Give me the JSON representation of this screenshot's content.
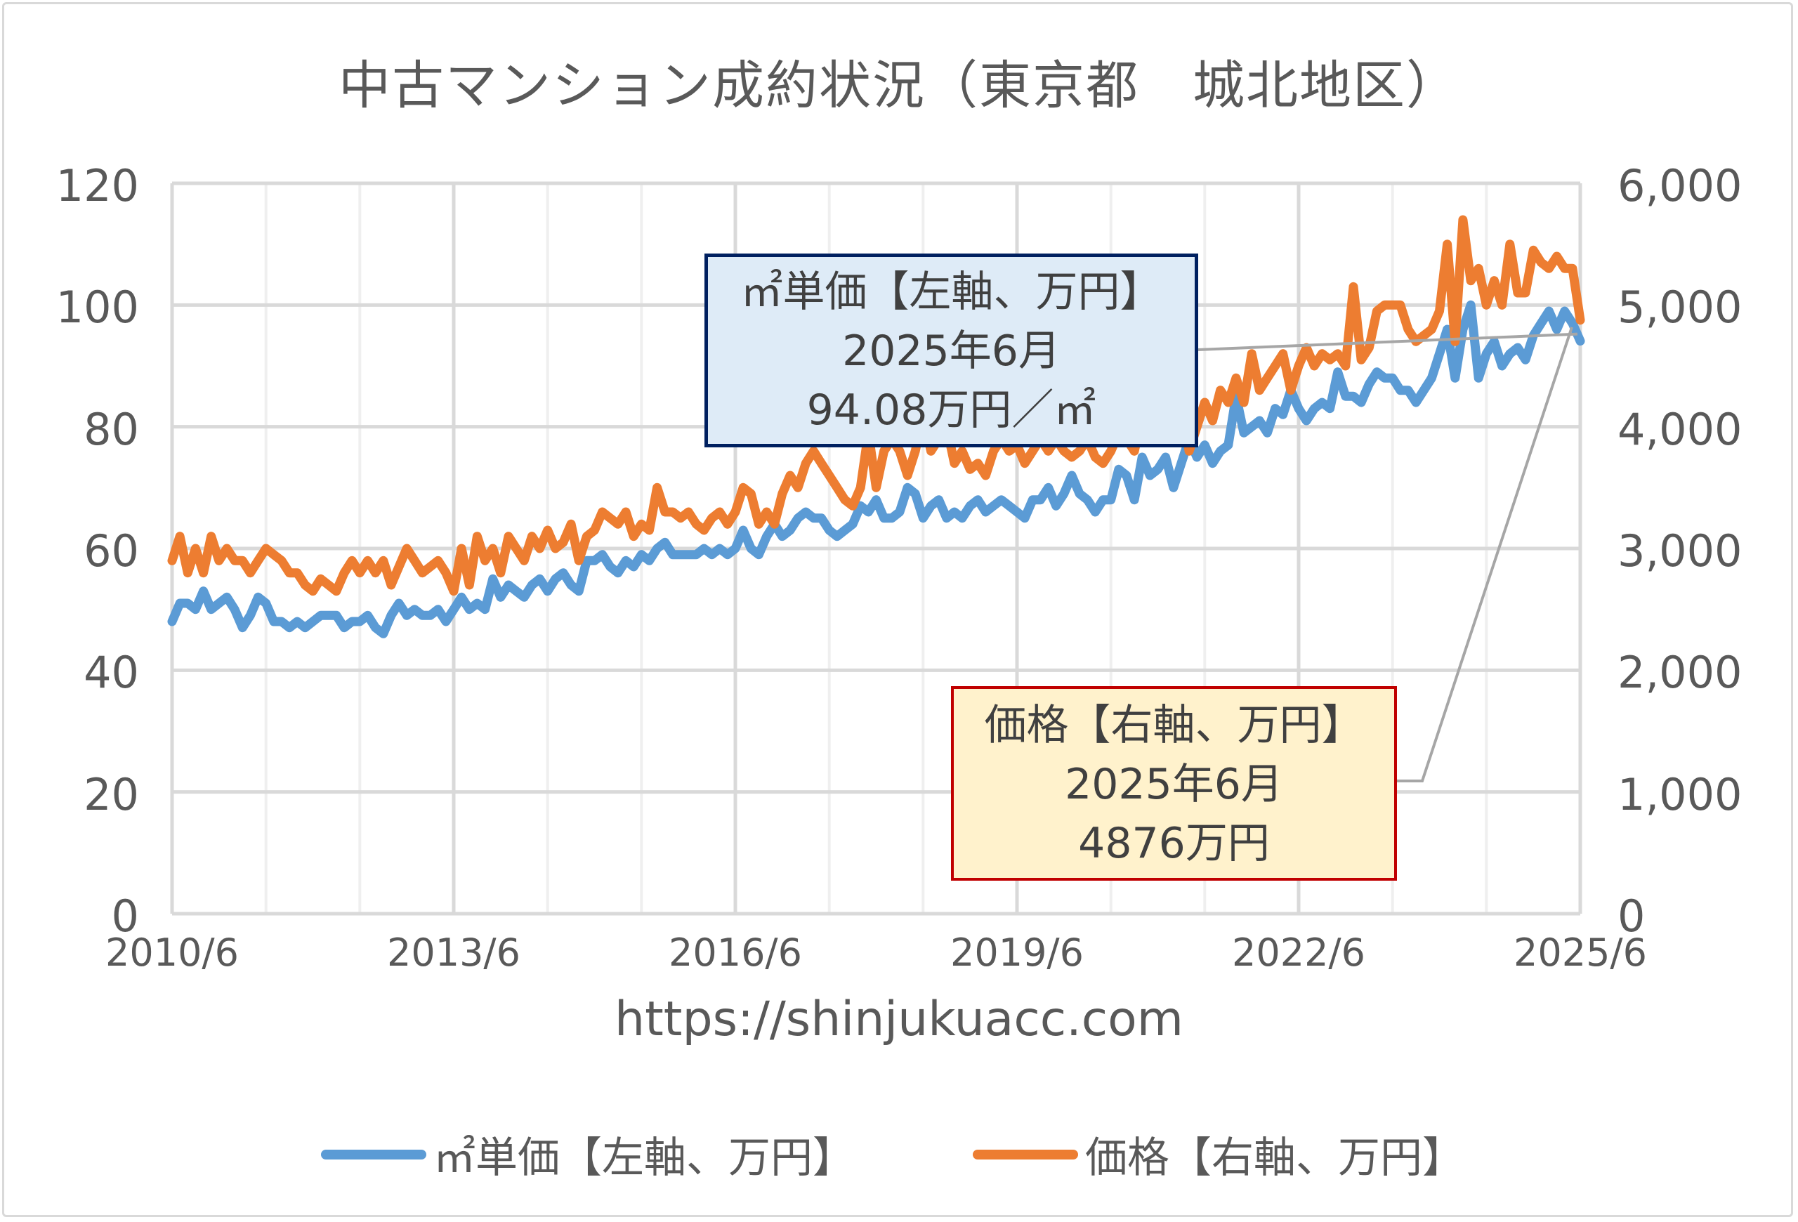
{
  "title": "中古マンション成約状況（東京都　城北地区）",
  "url": "https://shinjukuacc.com",
  "callouts": {
    "left": {
      "line1": "㎡単価【左軸、万円】",
      "line2": "2025年6月",
      "line3": "94.08万円／㎡"
    },
    "right": {
      "line1": "価格【右軸、万円】",
      "line2": "2025年6月",
      "line3": "4876万円"
    }
  },
  "colors": {
    "series1": "#5b9bd5",
    "series2": "#ed7d31",
    "grid": "#d9d9d9",
    "leader": "#a6a6a6"
  },
  "chart_data": {
    "type": "line",
    "title": "中古マンション成約状況（東京都　城北地区）",
    "x_start": "2010/6",
    "x_end": "2025/6",
    "x_frequency": "monthly",
    "xticks": [
      "2010/6",
      "2013/6",
      "2016/6",
      "2019/6",
      "2022/6",
      "2025/6"
    ],
    "y_left": {
      "range": [
        0,
        120
      ],
      "ticks": [
        "0",
        "20",
        "40",
        "60",
        "80",
        "100",
        "120"
      ]
    },
    "y_right": {
      "range": [
        0,
        6000
      ],
      "ticks": [
        "0",
        "1,000",
        "2,000",
        "3,000",
        "4,000",
        "5,000",
        "6,000"
      ]
    },
    "grid": true,
    "legend_position": "bottom",
    "series": [
      {
        "name": "㎡単価【左軸、万円】",
        "axis": "left",
        "values": [
          48,
          51,
          51,
          50,
          53,
          50,
          51,
          52,
          50,
          47,
          49,
          52,
          51,
          48,
          48,
          47,
          48,
          47,
          48,
          49,
          49,
          49,
          47,
          48,
          48,
          49,
          47,
          46,
          49,
          51,
          49,
          50,
          49,
          49,
          50,
          48,
          50,
          52,
          50,
          51,
          50,
          55,
          52,
          54,
          53,
          52,
          54,
          55,
          53,
          55,
          56,
          54,
          53,
          58,
          58,
          59,
          57,
          56,
          58,
          57,
          59,
          58,
          60,
          61,
          59,
          59,
          59,
          59,
          60,
          59,
          60,
          59,
          60,
          63,
          60,
          59,
          62,
          64,
          62,
          63,
          65,
          66,
          65,
          65,
          63,
          62,
          63,
          64,
          67,
          66,
          68,
          65,
          65,
          66,
          70,
          69,
          65,
          67,
          68,
          65,
          66,
          65,
          67,
          68,
          66,
          67,
          68,
          67,
          66,
          65,
          68,
          68,
          70,
          67,
          69,
          72,
          69,
          68,
          66,
          68,
          68,
          73,
          72,
          68,
          75,
          72,
          73,
          75,
          70,
          74,
          78,
          75,
          77,
          74,
          76,
          77,
          85,
          79,
          80,
          81,
          79,
          83,
          82,
          86,
          83,
          81,
          83,
          84,
          83,
          89,
          85,
          85,
          84,
          87,
          89,
          88,
          88,
          86,
          86,
          84,
          86,
          88,
          92,
          96,
          88,
          96,
          100,
          88,
          92,
          94,
          90,
          92,
          93,
          91,
          95,
          97,
          99,
          96,
          99,
          97,
          94.08
        ]
      },
      {
        "name": "価格【右軸、万円】",
        "axis": "right",
        "values": [
          2900,
          3100,
          2800,
          3000,
          2800,
          3100,
          2900,
          3000,
          2900,
          2900,
          2800,
          2900,
          3000,
          2950,
          2900,
          2800,
          2800,
          2700,
          2650,
          2750,
          2700,
          2650,
          2800,
          2900,
          2800,
          2900,
          2800,
          2900,
          2700,
          2850,
          3000,
          2900,
          2800,
          2850,
          2900,
          2800,
          2650,
          3000,
          2700,
          3100,
          2900,
          3000,
          2800,
          3100,
          3000,
          2900,
          3100,
          3000,
          3150,
          3000,
          3050,
          3200,
          2900,
          3100,
          3150,
          3300,
          3250,
          3200,
          3300,
          3100,
          3200,
          3150,
          3500,
          3300,
          3300,
          3250,
          3300,
          3200,
          3150,
          3250,
          3300,
          3200,
          3300,
          3500,
          3450,
          3200,
          3300,
          3200,
          3450,
          3600,
          3500,
          3700,
          3800,
          3700,
          3600,
          3500,
          3400,
          3350,
          3500,
          3950,
          3500,
          3800,
          3900,
          3800,
          3600,
          3800,
          4100,
          3800,
          3900,
          4000,
          3700,
          3800,
          3650,
          3700,
          3600,
          3800,
          3900,
          3800,
          3850,
          3700,
          3800,
          3900,
          3800,
          3900,
          3800,
          3750,
          3800,
          3900,
          3750,
          3700,
          3800,
          3950,
          3900,
          3800,
          4100,
          4000,
          4300,
          3900,
          4100,
          4200,
          3800,
          4000,
          4200,
          4050,
          4300,
          4200,
          4400,
          4200,
          4600,
          4300,
          4400,
          4500,
          4600,
          4300,
          4500,
          4650,
          4500,
          4600,
          4550,
          4600,
          4500,
          5150,
          4550,
          4650,
          4950,
          5000,
          5000,
          5000,
          4800,
          4700,
          4750,
          4800,
          4950,
          5500,
          4700,
          5700,
          5200,
          5300,
          5000,
          5200,
          5000,
          5500,
          5100,
          5100,
          5450,
          5350,
          5300,
          5400,
          5300,
          5300,
          4876
        ]
      }
    ]
  }
}
